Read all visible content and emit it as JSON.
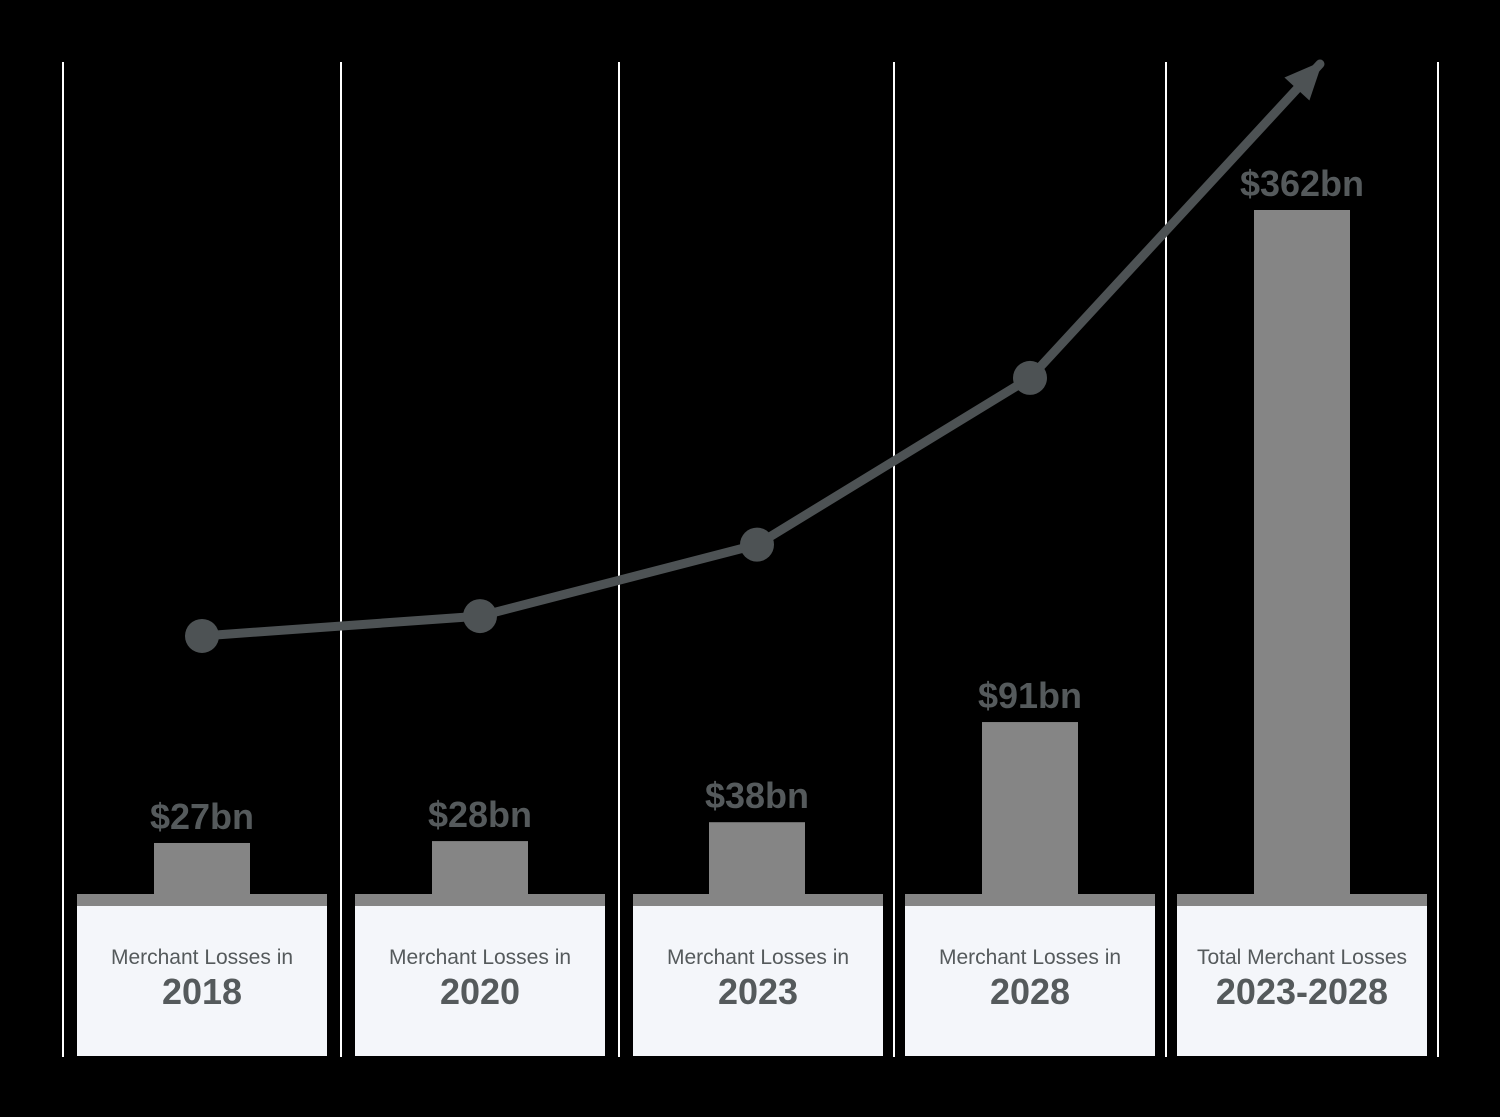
{
  "colors": {
    "background": "#000000",
    "bar": "#858585",
    "trend": "#4d5254",
    "value_text": "#555a5c",
    "label_box": "#f4f6fa",
    "label_text": "#555a5c",
    "divider": "#ffffff"
  },
  "chart_data": {
    "type": "bar",
    "title": "",
    "xlabel": "",
    "ylabel": "",
    "ylim": [
      0,
      400
    ],
    "grid": false,
    "categories": [
      "2018",
      "2020",
      "2023",
      "2028",
      "2023-2028"
    ],
    "category_prefixes": [
      "Merchant Losses in",
      "Merchant Losses in",
      "Merchant Losses in",
      "Merchant Losses in",
      "Total Merchant Losses"
    ],
    "values": [
      27,
      28,
      38,
      91,
      362
    ],
    "value_labels": [
      "$27bn",
      "$28bn",
      "$38bn",
      "$91bn",
      "$362bn"
    ],
    "trend_line": {
      "style": "arrow",
      "values": [
        65,
        70,
        88,
        130
      ]
    }
  }
}
